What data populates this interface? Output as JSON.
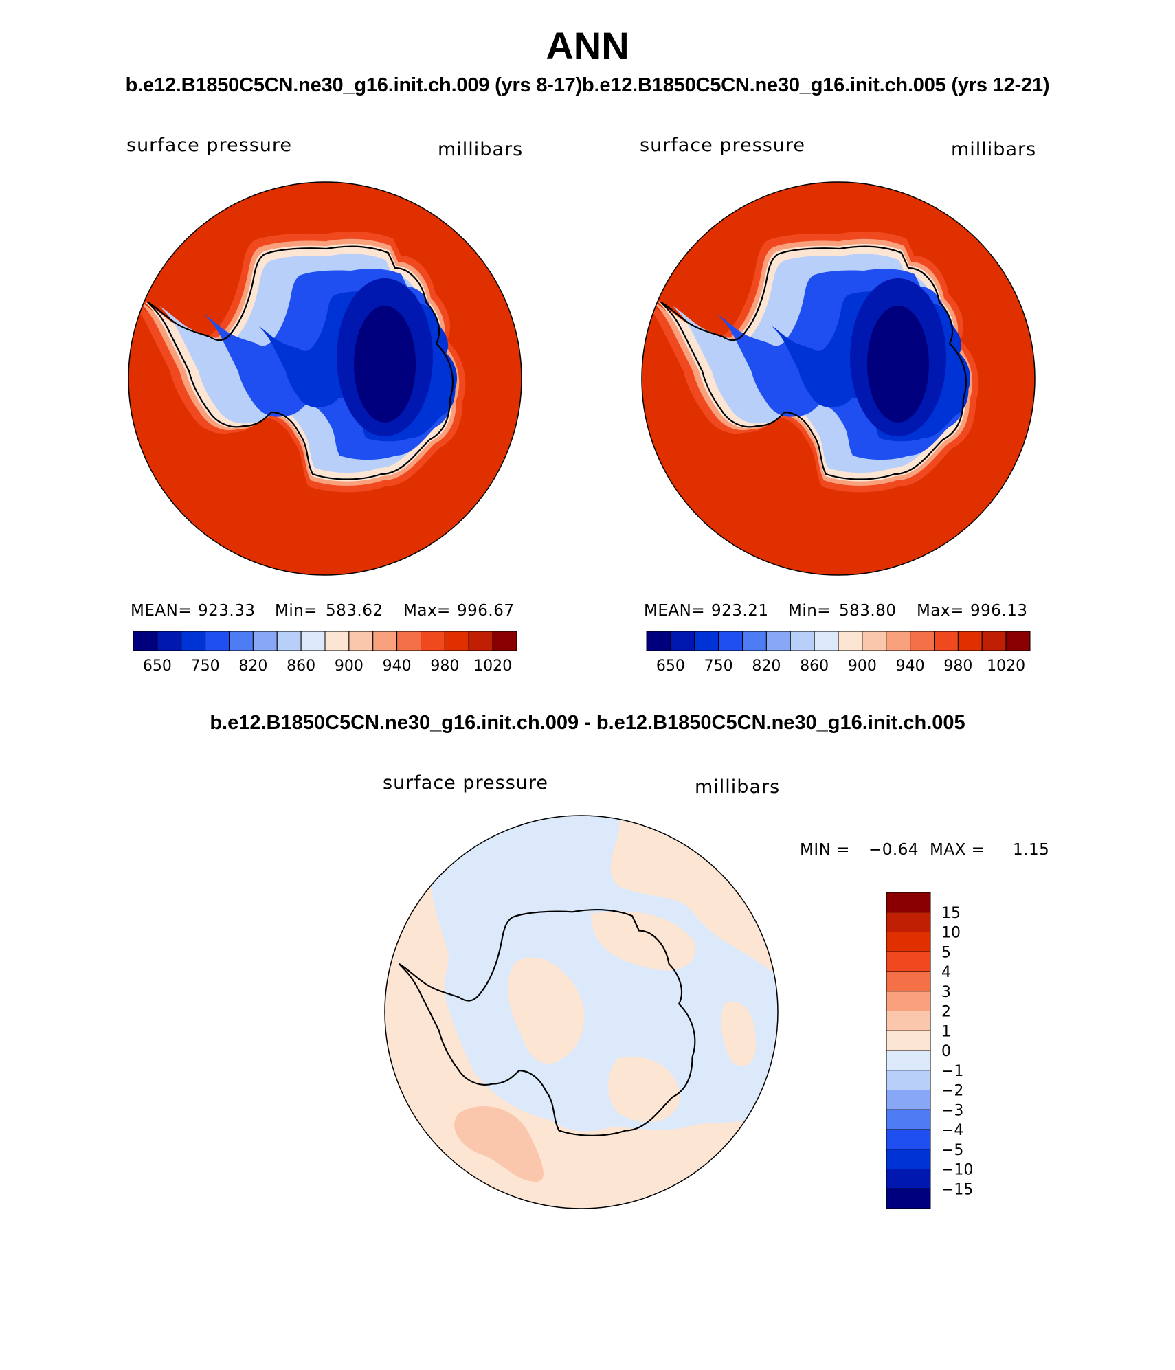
{
  "title": "ANN",
  "subtitle": "b.e12.B1850C5CN.ne30_g16.init.ch.009 (yrs 8-17)b.e12.B1850C5CN.ne30_g16.init.ch.005 (yrs 12-21)",
  "diff_title": "b.e12.B1850C5CN.ne30_g16.init.ch.009 - b.e12.B1850C5CN.ne30_g16.init.ch.005",
  "colors": {
    "abs_scale": [
      "#00007f",
      "#0018b0",
      "#0033d6",
      "#1f4ff0",
      "#4d7cf4",
      "#88a8f7",
      "#b7cff9",
      "#dbe9fb",
      "#fde5d4",
      "#fbc7ac",
      "#f9a07c",
      "#f47047",
      "#f0491f",
      "#e03000",
      "#c11f03",
      "#8a0000"
    ],
    "diff_scale": [
      "#00007f",
      "#0018b0",
      "#0033d6",
      "#1f4ff0",
      "#4d7cf4",
      "#88a8f7",
      "#b7cff9",
      "#dbe9fb",
      "#fde5d4",
      "#fbc7ac",
      "#f9a07c",
      "#f47047",
      "#f0491f",
      "#e03000",
      "#c11f03",
      "#8a0000"
    ]
  },
  "chart_data": [
    {
      "type": "heatmap",
      "panel": "case 1",
      "variable": "surface pressure",
      "units": "millibars",
      "mean_label": "MEAN=",
      "mean": "923.33",
      "min_label": "Min=",
      "min": "583.62",
      "max_label": "Max=",
      "max": "996.67",
      "colorbar_ticks": [
        "650",
        "750",
        "820",
        "860",
        "900",
        "940",
        "980",
        "1020"
      ],
      "contour_levels": [
        650,
        700,
        750,
        800,
        820,
        840,
        860,
        880,
        900,
        920,
        940,
        960,
        980,
        1000,
        1020
      ]
    },
    {
      "type": "heatmap",
      "panel": "case 2",
      "variable": "surface pressure",
      "units": "millibars",
      "mean_label": "MEAN=",
      "mean": "923.21",
      "min_label": "Min=",
      "min": "583.80",
      "max_label": "Max=",
      "max": "996.13",
      "colorbar_ticks": [
        "650",
        "750",
        "820",
        "860",
        "900",
        "940",
        "980",
        "1020"
      ],
      "contour_levels": [
        650,
        700,
        750,
        800,
        820,
        840,
        860,
        880,
        900,
        920,
        940,
        960,
        980,
        1000,
        1020
      ]
    },
    {
      "type": "heatmap",
      "panel": "difference",
      "variable": "surface pressure",
      "units": "millibars",
      "min_label": "MIN =",
      "min": "−0.64",
      "max_label": "MAX =",
      "max": "1.15",
      "colorbar_ticks": [
        "15",
        "10",
        "5",
        "4",
        "3",
        "2",
        "1",
        "0",
        "−1",
        "−2",
        "−3",
        "−4",
        "−5",
        "−10",
        "−15"
      ]
    }
  ]
}
